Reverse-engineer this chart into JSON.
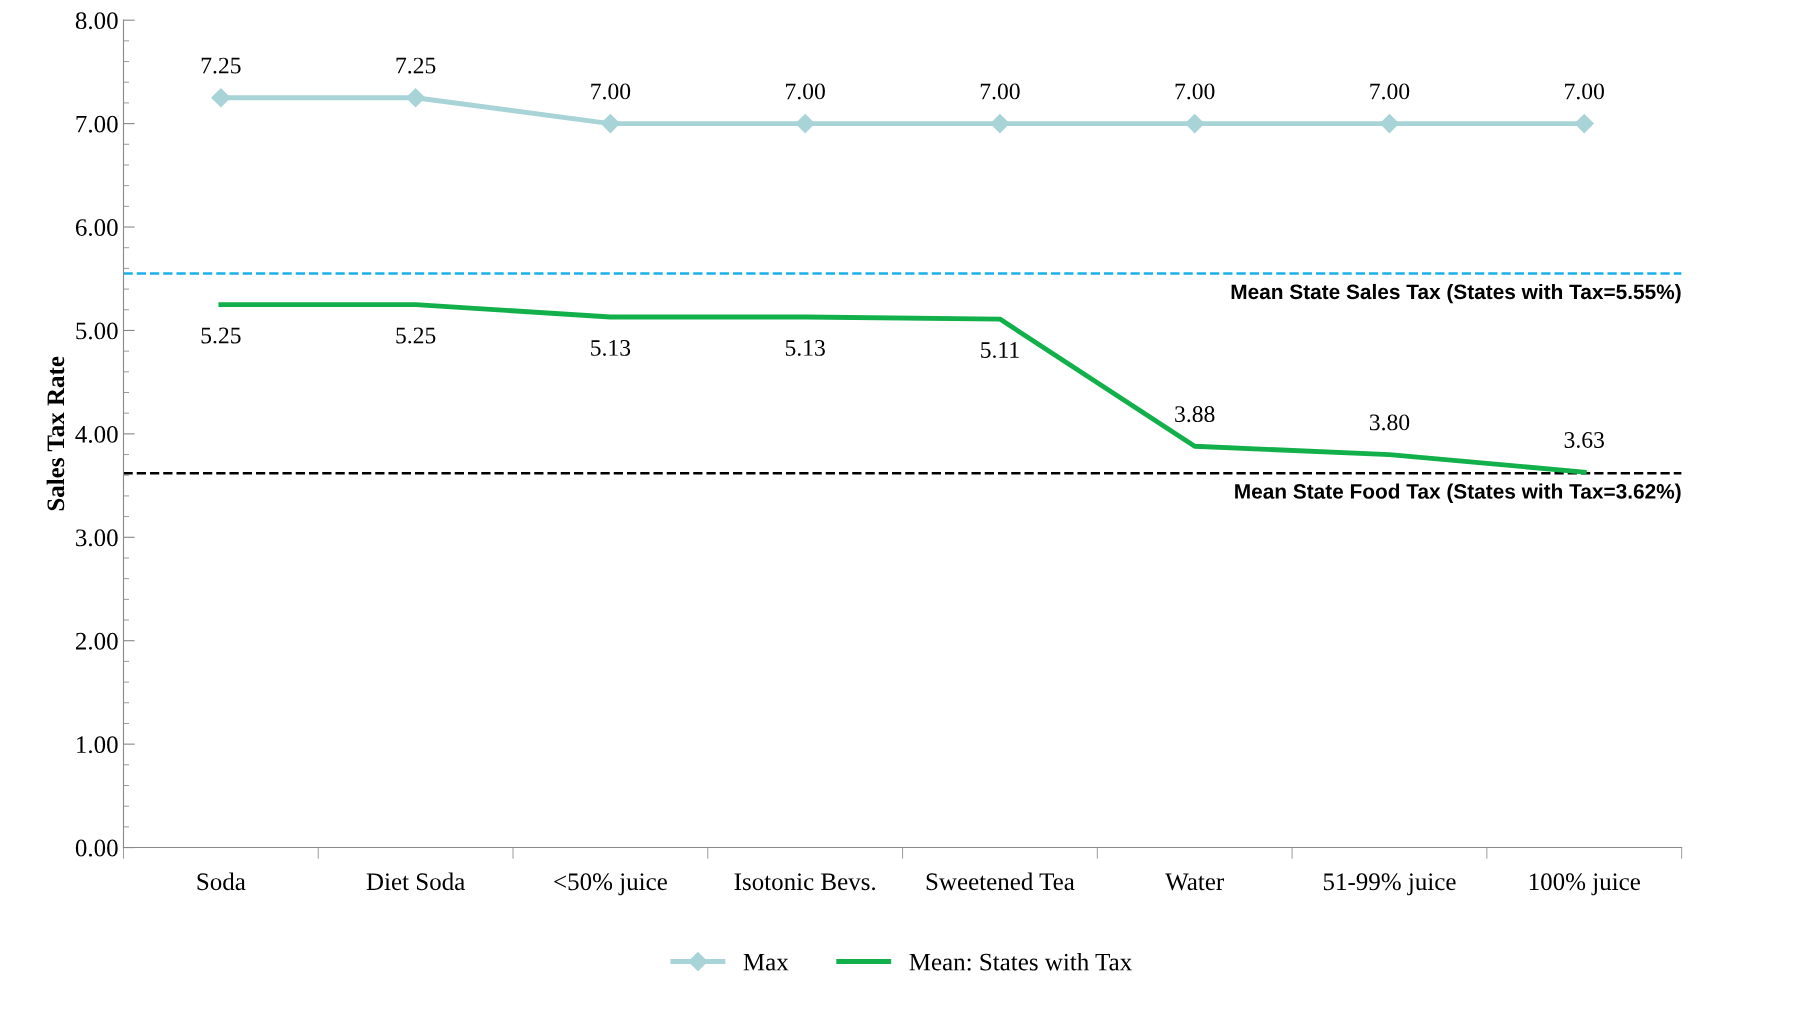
{
  "chart_data": {
    "type": "line",
    "ylabel": "Sales Tax Rate",
    "categories": [
      "Soda",
      "Diet Soda",
      "<50% juice",
      "Isotonic Bevs.",
      "Sweetened Tea",
      "Water",
      "51-99% juice",
      "100% juice"
    ],
    "series": [
      {
        "name": "Max",
        "color": "#a8d4d8",
        "marker": "diamond",
        "values": [
          7.25,
          7.25,
          7.0,
          7.0,
          7.0,
          7.0,
          7.0,
          7.0
        ],
        "value_labels": [
          "7.25",
          "7.25",
          "7.00",
          "7.00",
          "7.00",
          "7.00",
          "7.00",
          "7.00"
        ]
      },
      {
        "name": "Mean: States with Tax",
        "color": "#12b04a",
        "marker": "none",
        "values": [
          5.25,
          5.25,
          5.13,
          5.13,
          5.11,
          3.88,
          3.8,
          3.63
        ],
        "value_labels": [
          "5.25",
          "5.25",
          "5.13",
          "5.13",
          "5.11",
          "3.88",
          "3.80",
          "3.63"
        ]
      }
    ],
    "ylim": [
      0,
      8
    ],
    "yticks": [
      {
        "value": 0,
        "label": "0.00"
      },
      {
        "value": 1,
        "label": "1.00"
      },
      {
        "value": 2,
        "label": "2.00"
      },
      {
        "value": 3,
        "label": "3.00"
      },
      {
        "value": 4,
        "label": "4.00"
      },
      {
        "value": 5,
        "label": "5.00"
      },
      {
        "value": 6,
        "label": "6.00"
      },
      {
        "value": 7,
        "label": "7.00"
      },
      {
        "value": 8,
        "label": "8.00"
      }
    ],
    "ref_lines": [
      {
        "axis": "y",
        "value": 5.55,
        "label": "Mean State Sales Tax (States with Tax=5.55%)",
        "color": "#1ab0e8",
        "line_style": "dashed"
      },
      {
        "axis": "y",
        "value": 3.62,
        "label": "Mean State Food Tax (States with Tax=3.62%)",
        "color": "#000000",
        "line_style": "dashed"
      }
    ],
    "grid": false,
    "legend": "bottom",
    "line_style": "solid"
  }
}
